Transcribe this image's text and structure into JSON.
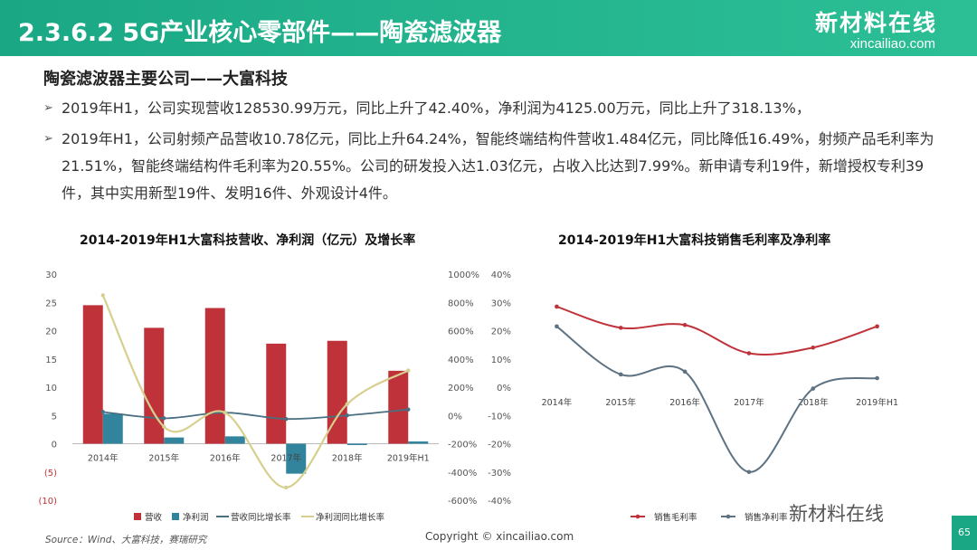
{
  "header": {
    "title": "2.3.6.2 5G产业核心零部件——陶瓷滤波器",
    "logo_main": "新材料在线",
    "logo_sub": "xincailiao.com"
  },
  "section": {
    "heading": "陶瓷滤波器主要公司——大富科技",
    "bullet_marker": "➢",
    "bullets": [
      "2019年H1，公司实现营收128530.99万元，同比上升了42.40%，净利润为4125.00万元，同比上升了318.13%，",
      "2019年H1，公司射频产品营收10.78亿元，同比上升64.24%，智能终端结构件营收1.484亿元，同比降低16.49%，射频产品毛利率为21.51%，智能终端结构件毛利率为20.55%。公司的研发投入达1.03亿元，占收入比达到7.99%。新申请专利19件，新增授权专利39件，其中实用新型19件、发明16件、外观设计4件。"
    ]
  },
  "chart_data": [
    {
      "type": "bar",
      "title": "2014-2019年H1大富科技营收、净利润（亿元）及增长率",
      "categories": [
        "2014年",
        "2015年",
        "2016年",
        "2017年",
        "2018年",
        "2019年H1"
      ],
      "y_left": {
        "ylim": [
          -10,
          30
        ],
        "ticks": [
          "30",
          "25",
          "20",
          "15",
          "10",
          "5",
          "0",
          "(5)",
          "(10)"
        ]
      },
      "y_right": {
        "ylim": [
          -600,
          1000
        ],
        "ticks": [
          "1000%",
          "800%",
          "600%",
          "400%",
          "200%",
          "0%",
          "-200%",
          "-400%",
          "-600%"
        ]
      },
      "series": [
        {
          "name": "营收",
          "kind": "bar",
          "axis": "left",
          "color": "#c0323a",
          "values": [
            24.5,
            20.5,
            24.0,
            17.7,
            18.2,
            12.9
          ]
        },
        {
          "name": "净利润",
          "kind": "bar",
          "axis": "left",
          "color": "#31849b",
          "values": [
            5.3,
            1.1,
            1.3,
            -5.3,
            -0.2,
            0.4
          ]
        },
        {
          "name": "营收同比增长率",
          "kind": "line",
          "axis": "right",
          "color": "#4a6f82",
          "values": [
            25,
            -20,
            20,
            -25,
            0,
            42
          ]
        },
        {
          "name": "净利润同比增长率",
          "kind": "line",
          "axis": "right",
          "color": "#d6cf8e",
          "values": [
            850,
            -80,
            20,
            -510,
            80,
            318
          ]
        }
      ],
      "legend_position": "bottom"
    },
    {
      "type": "line",
      "title": "2014-2019年H1大富科技销售毛利率及净利率",
      "categories": [
        "2014年",
        "2015年",
        "2016年",
        "2017年",
        "2018年",
        "2019年H1"
      ],
      "ylim": [
        -40,
        40
      ],
      "ticks": [
        "40%",
        "30%",
        "20%",
        "10%",
        "0%",
        "-10%",
        "-20%",
        "-30%",
        "-40%"
      ],
      "series": [
        {
          "name": "销售毛利率",
          "color": "#c0323a",
          "values": [
            28.5,
            21.0,
            22.0,
            12.0,
            14.0,
            21.5
          ]
        },
        {
          "name": "销售净利率",
          "color": "#5e7282",
          "values": [
            21.5,
            4.5,
            5.5,
            -30.0,
            -0.5,
            3.2
          ]
        }
      ],
      "legend_position": "bottom"
    }
  ],
  "footer": {
    "source": "Source：Wind、大富科技，赛瑞研究",
    "copyright": "Copyright © xincailiao.com",
    "wechat": "新材料在线",
    "page": "65"
  },
  "colors": {
    "header": "#1aa884",
    "bar_revenue": "#c0323a",
    "bar_profit": "#31849b"
  }
}
